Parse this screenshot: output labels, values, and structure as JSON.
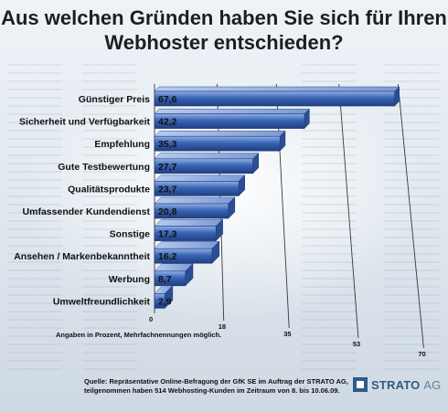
{
  "title": "Aus welchen Gründen haben Sie sich für Ihren Webhoster entschieden?",
  "chart_data": {
    "type": "bar",
    "orientation": "horizontal",
    "categories": [
      "Günstiger Preis",
      "Sicherheit und Verfügbarkeit",
      "Empfehlung",
      "Gute Testbewertung",
      "Qualitätsprodukte",
      "Umfassender Kundendienst",
      "Sonstige",
      "Ansehen / Markenbekanntheit",
      "Werbung",
      "Umweltfreundlichkeit"
    ],
    "values": [
      67.6,
      42.2,
      35.3,
      27.7,
      23.7,
      20.8,
      17.3,
      16.2,
      8.7,
      2.9
    ],
    "value_labels": [
      "67,6",
      "42,2",
      "35,3",
      "27,7",
      "23,7",
      "20,8",
      "17,3",
      "16,2",
      "8,7",
      "2,9"
    ],
    "x_ticks": [
      "0",
      "18",
      "35",
      "53",
      "70"
    ],
    "xlim": [
      0,
      70
    ],
    "bar_color": "#3a64b4",
    "grid": true
  },
  "footnote": "Angaben in Prozent, Mehrfachnennungen möglich.",
  "source_line1": "Quelle: Repräsentative Online-Befragung der GfK SE im Auftrag der STRATO AG,",
  "source_line2": "teilgenommen haben 514 Webhosting-Kunden im Zeitraum von 8. bis 10.06.09.",
  "logo": {
    "brand": "STRATO",
    "suffix": "AG"
  }
}
